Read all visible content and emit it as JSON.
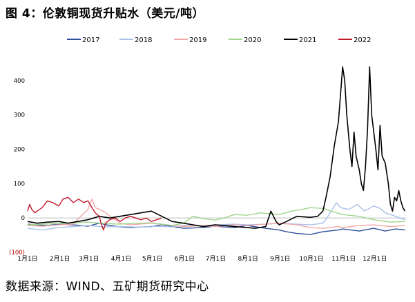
{
  "figure": {
    "title": "图 4：伦敦铜现货升贴水（美元/吨）",
    "source": "数据来源：WIND、五矿期货研究中心"
  },
  "chart_data": {
    "type": "line",
    "title": "",
    "xlabel": "",
    "ylabel": "",
    "ylim": [
      -100,
      450
    ],
    "y_ticks": [
      -100,
      0,
      100,
      200,
      300,
      400
    ],
    "y_tick_labels": [
      "(100)",
      "0",
      "100",
      "200",
      "300",
      "400"
    ],
    "negative_label_color": "#c00000",
    "x_ticks": [
      "1月1日",
      "2月1日",
      "3月1日",
      "4月1日",
      "5月1日",
      "6月1日",
      "7月1日",
      "8月1日",
      "9月1日",
      "10月1日",
      "11月1日",
      "12月1日"
    ],
    "x_unit": "day_of_year",
    "zero_line_color": "#bfbfbf",
    "grid": false,
    "legend_position": "top",
    "series": [
      {
        "name": "2017",
        "color": "#2e4d9b",
        "points": [
          [
            1,
            -18
          ],
          [
            10,
            -20
          ],
          [
            20,
            -22
          ],
          [
            31,
            -18
          ],
          [
            45,
            -20
          ],
          [
            59,
            -24
          ],
          [
            70,
            -15
          ],
          [
            80,
            -22
          ],
          [
            90,
            -26
          ],
          [
            100,
            -28
          ],
          [
            120,
            -25
          ],
          [
            130,
            -20
          ],
          [
            151,
            -30
          ],
          [
            170,
            -28
          ],
          [
            181,
            -24
          ],
          [
            200,
            -28
          ],
          [
            212,
            -22
          ],
          [
            230,
            -30
          ],
          [
            243,
            -35
          ],
          [
            250,
            -40
          ],
          [
            260,
            -45
          ],
          [
            273,
            -48
          ],
          [
            285,
            -40
          ],
          [
            300,
            -35
          ],
          [
            304,
            -32
          ],
          [
            320,
            -38
          ],
          [
            334,
            -30
          ],
          [
            345,
            -38
          ],
          [
            355,
            -32
          ],
          [
            364,
            -35
          ]
        ]
      },
      {
        "name": "2018",
        "color": "#a9c0e8",
        "points": [
          [
            1,
            -30
          ],
          [
            15,
            -35
          ],
          [
            31,
            -28
          ],
          [
            45,
            -25
          ],
          [
            59,
            -22
          ],
          [
            75,
            -26
          ],
          [
            90,
            -25
          ],
          [
            110,
            -27
          ],
          [
            120,
            -24
          ],
          [
            140,
            -26
          ],
          [
            151,
            -22
          ],
          [
            170,
            -24
          ],
          [
            181,
            -20
          ],
          [
            200,
            -18
          ],
          [
            212,
            -20
          ],
          [
            230,
            -18
          ],
          [
            243,
            -15
          ],
          [
            260,
            -18
          ],
          [
            273,
            -20
          ],
          [
            285,
            -15
          ],
          [
            290,
            5
          ],
          [
            298,
            45
          ],
          [
            302,
            30
          ],
          [
            310,
            25
          ],
          [
            318,
            40
          ],
          [
            325,
            20
          ],
          [
            334,
            35
          ],
          [
            340,
            28
          ],
          [
            345,
            15
          ],
          [
            355,
            5
          ],
          [
            364,
            -5
          ]
        ]
      },
      {
        "name": "2019",
        "color": "#f2a7a7",
        "points": [
          [
            1,
            -22
          ],
          [
            15,
            -24
          ],
          [
            31,
            -20
          ],
          [
            45,
            -18
          ],
          [
            52,
            5
          ],
          [
            59,
            25
          ],
          [
            63,
            55
          ],
          [
            66,
            30
          ],
          [
            70,
            25
          ],
          [
            75,
            18
          ],
          [
            80,
            5
          ],
          [
            90,
            -15
          ],
          [
            100,
            -20
          ],
          [
            120,
            -15
          ],
          [
            140,
            -22
          ],
          [
            151,
            -25
          ],
          [
            170,
            -22
          ],
          [
            181,
            -25
          ],
          [
            200,
            -20
          ],
          [
            212,
            -22
          ],
          [
            230,
            -18
          ],
          [
            243,
            -15
          ],
          [
            260,
            -20
          ],
          [
            273,
            -28
          ],
          [
            285,
            -30
          ],
          [
            300,
            -25
          ],
          [
            304,
            -28
          ],
          [
            320,
            -22
          ],
          [
            334,
            -20
          ],
          [
            350,
            -25
          ],
          [
            364,
            -22
          ]
        ]
      },
      {
        "name": "2020",
        "color": "#9fd48a",
        "points": [
          [
            1,
            -20
          ],
          [
            15,
            -18
          ],
          [
            31,
            -16
          ],
          [
            45,
            -14
          ],
          [
            59,
            -12
          ],
          [
            75,
            -16
          ],
          [
            90,
            -18
          ],
          [
            100,
            -16
          ],
          [
            120,
            -14
          ],
          [
            140,
            -22
          ],
          [
            151,
            -15
          ],
          [
            160,
            5
          ],
          [
            170,
            -2
          ],
          [
            181,
            -6
          ],
          [
            190,
            0
          ],
          [
            200,
            10
          ],
          [
            212,
            8
          ],
          [
            225,
            15
          ],
          [
            235,
            12
          ],
          [
            243,
            10
          ],
          [
            255,
            20
          ],
          [
            265,
            25
          ],
          [
            273,
            30
          ],
          [
            285,
            28
          ],
          [
            295,
            18
          ],
          [
            304,
            10
          ],
          [
            320,
            5
          ],
          [
            334,
            -5
          ],
          [
            350,
            -12
          ],
          [
            364,
            -10
          ]
        ]
      },
      {
        "name": "2021",
        "color": "#000000",
        "points": [
          [
            1,
            -10
          ],
          [
            10,
            -15
          ],
          [
            20,
            -12
          ],
          [
            31,
            -10
          ],
          [
            40,
            -15
          ],
          [
            59,
            -5
          ],
          [
            70,
            5
          ],
          [
            80,
            0
          ],
          [
            90,
            5
          ],
          [
            100,
            10
          ],
          [
            110,
            15
          ],
          [
            120,
            20
          ],
          [
            130,
            5
          ],
          [
            140,
            -10
          ],
          [
            151,
            -15
          ],
          [
            160,
            -20
          ],
          [
            170,
            -25
          ],
          [
            181,
            -20
          ],
          [
            190,
            -22
          ],
          [
            200,
            -25
          ],
          [
            212,
            -28
          ],
          [
            220,
            -30
          ],
          [
            230,
            -25
          ],
          [
            235,
            20
          ],
          [
            240,
            -10
          ],
          [
            243,
            -20
          ],
          [
            250,
            -10
          ],
          [
            260,
            5
          ],
          [
            273,
            2
          ],
          [
            280,
            5
          ],
          [
            285,
            20
          ],
          [
            288,
            60
          ],
          [
            292,
            120
          ],
          [
            296,
            210
          ],
          [
            300,
            280
          ],
          [
            304,
            440
          ],
          [
            306,
            400
          ],
          [
            308,
            300
          ],
          [
            311,
            200
          ],
          [
            313,
            150
          ],
          [
            315,
            250
          ],
          [
            317,
            180
          ],
          [
            320,
            140
          ],
          [
            322,
            100
          ],
          [
            324,
            80
          ],
          [
            326,
            150
          ],
          [
            328,
            260
          ],
          [
            330,
            440
          ],
          [
            332,
            300
          ],
          [
            334,
            250
          ],
          [
            336,
            200
          ],
          [
            338,
            140
          ],
          [
            340,
            270
          ],
          [
            342,
            180
          ],
          [
            345,
            160
          ],
          [
            348,
            100
          ],
          [
            350,
            40
          ],
          [
            352,
            20
          ],
          [
            354,
            60
          ],
          [
            356,
            50
          ],
          [
            358,
            80
          ],
          [
            360,
            50
          ],
          [
            362,
            30
          ],
          [
            364,
            20
          ]
        ]
      },
      {
        "name": "2022",
        "color": "#c0182b",
        "points": [
          [
            1,
            20
          ],
          [
            3,
            40
          ],
          [
            5,
            25
          ],
          [
            8,
            15
          ],
          [
            10,
            20
          ],
          [
            15,
            30
          ],
          [
            20,
            50
          ],
          [
            25,
            45
          ],
          [
            31,
            35
          ],
          [
            35,
            55
          ],
          [
            40,
            60
          ],
          [
            45,
            45
          ],
          [
            50,
            55
          ],
          [
            55,
            45
          ],
          [
            59,
            50
          ],
          [
            62,
            35
          ],
          [
            66,
            15
          ],
          [
            70,
            5
          ],
          [
            72,
            -20
          ],
          [
            74,
            -35
          ],
          [
            76,
            -15
          ],
          [
            80,
            -5
          ],
          [
            85,
            0
          ],
          [
            90,
            -10
          ],
          [
            95,
            0
          ],
          [
            100,
            5
          ],
          [
            105,
            0
          ],
          [
            110,
            -5
          ],
          [
            115,
            0
          ],
          [
            120,
            -10
          ],
          [
            125,
            -5
          ],
          [
            130,
            0
          ]
        ]
      }
    ]
  }
}
